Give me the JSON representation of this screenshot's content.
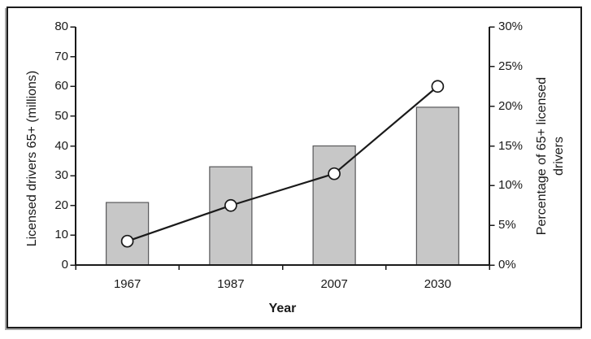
{
  "chart_data": {
    "type": "bar",
    "combo": "bar+line",
    "title": "",
    "categories": [
      "1967",
      "1987",
      "2007",
      "2030"
    ],
    "series": [
      {
        "name": "Licensed drivers 65+ (millions)",
        "plot": "bar",
        "axis": "left",
        "values": [
          21,
          33,
          40,
          53
        ]
      },
      {
        "name": "Percentage of 65+ licensed drivers",
        "plot": "line",
        "axis": "right",
        "unit": "%",
        "values": [
          3,
          7.5,
          11.5,
          22.5
        ]
      }
    ],
    "xlabel": "Year",
    "ylabel_left": "Licensed drivers 65+ (millions)",
    "ylabel_right_lines": [
      "Percentage of 65+ licensed",
      "drivers"
    ],
    "ylim_left": [
      0,
      80
    ],
    "yticks_left": [
      "0",
      "10",
      "20",
      "30",
      "40",
      "50",
      "60",
      "70",
      "80"
    ],
    "ylim_right": [
      0,
      30
    ],
    "yticks_right": [
      "0%",
      "5%",
      "10%",
      "15%",
      "20%",
      "25%",
      "30%"
    ],
    "grid": false,
    "legend_position": "none",
    "colors": {
      "bar_fill": "#c7c7c7",
      "bar_border": "#58585a",
      "line": "#1a1a1a",
      "marker_fill": "#ffffff",
      "marker_stroke": "#1a1a1a",
      "axis": "#1a1a1a",
      "text": "#1a1a1a",
      "frame": "#1c1c1c",
      "background": "#ffffff"
    }
  }
}
